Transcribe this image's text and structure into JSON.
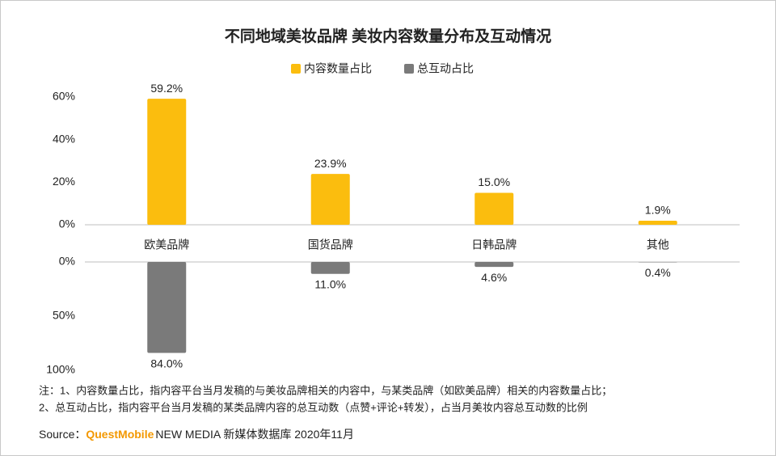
{
  "chart_data": [
    {
      "type": "bar",
      "title": "不同地域美妆品牌 美妆内容数量分布及互动情况",
      "categories": [
        "欧美品牌",
        "国货品牌",
        "日韩品牌",
        "其他"
      ],
      "series": [
        {
          "name": "内容数量占比",
          "color": "#fbbd0e",
          "values": [
            59.2,
            23.9,
            15.0,
            1.9
          ],
          "value_labels": [
            "59.2%",
            "23.9%",
            "15.0%",
            "1.9%"
          ]
        }
      ],
      "ylim": [
        0,
        60
      ],
      "yticks": [
        {
          "value": 0,
          "label": "0%"
        },
        {
          "value": 20,
          "label": "20%"
        },
        {
          "value": 40,
          "label": "40%"
        },
        {
          "value": 60,
          "label": "60%"
        }
      ]
    },
    {
      "type": "bar",
      "inverted": true,
      "series": [
        {
          "name": "总互动占比",
          "color": "#7a7a7a",
          "values": [
            84.0,
            11.0,
            4.6,
            0.4
          ],
          "value_labels": [
            "84.0%",
            "11.0%",
            "4.6%",
            "0.4%"
          ]
        }
      ],
      "ylim": [
        0,
        100
      ],
      "yticks": [
        {
          "value": 0,
          "label": "0%"
        },
        {
          "value": 50,
          "label": "50%"
        },
        {
          "value": 100,
          "label": "100%"
        }
      ]
    }
  ],
  "notes": [
    "注：1、内容数量占比，指内容平台当月发稿的与美妆品牌相关的内容中，与某类品牌（如欧美品牌）相关的内容数量占比；",
    "2、总互动占比，指内容平台当月发稿的某类品牌内容的总互动数（点赞+评论+转发），占当月美妆内容总互动数的比例"
  ],
  "source": {
    "prefix": "Source：",
    "brand": "QuestMobile",
    "rest": "NEW MEDIA 新媒体数据库 2020年11月"
  }
}
